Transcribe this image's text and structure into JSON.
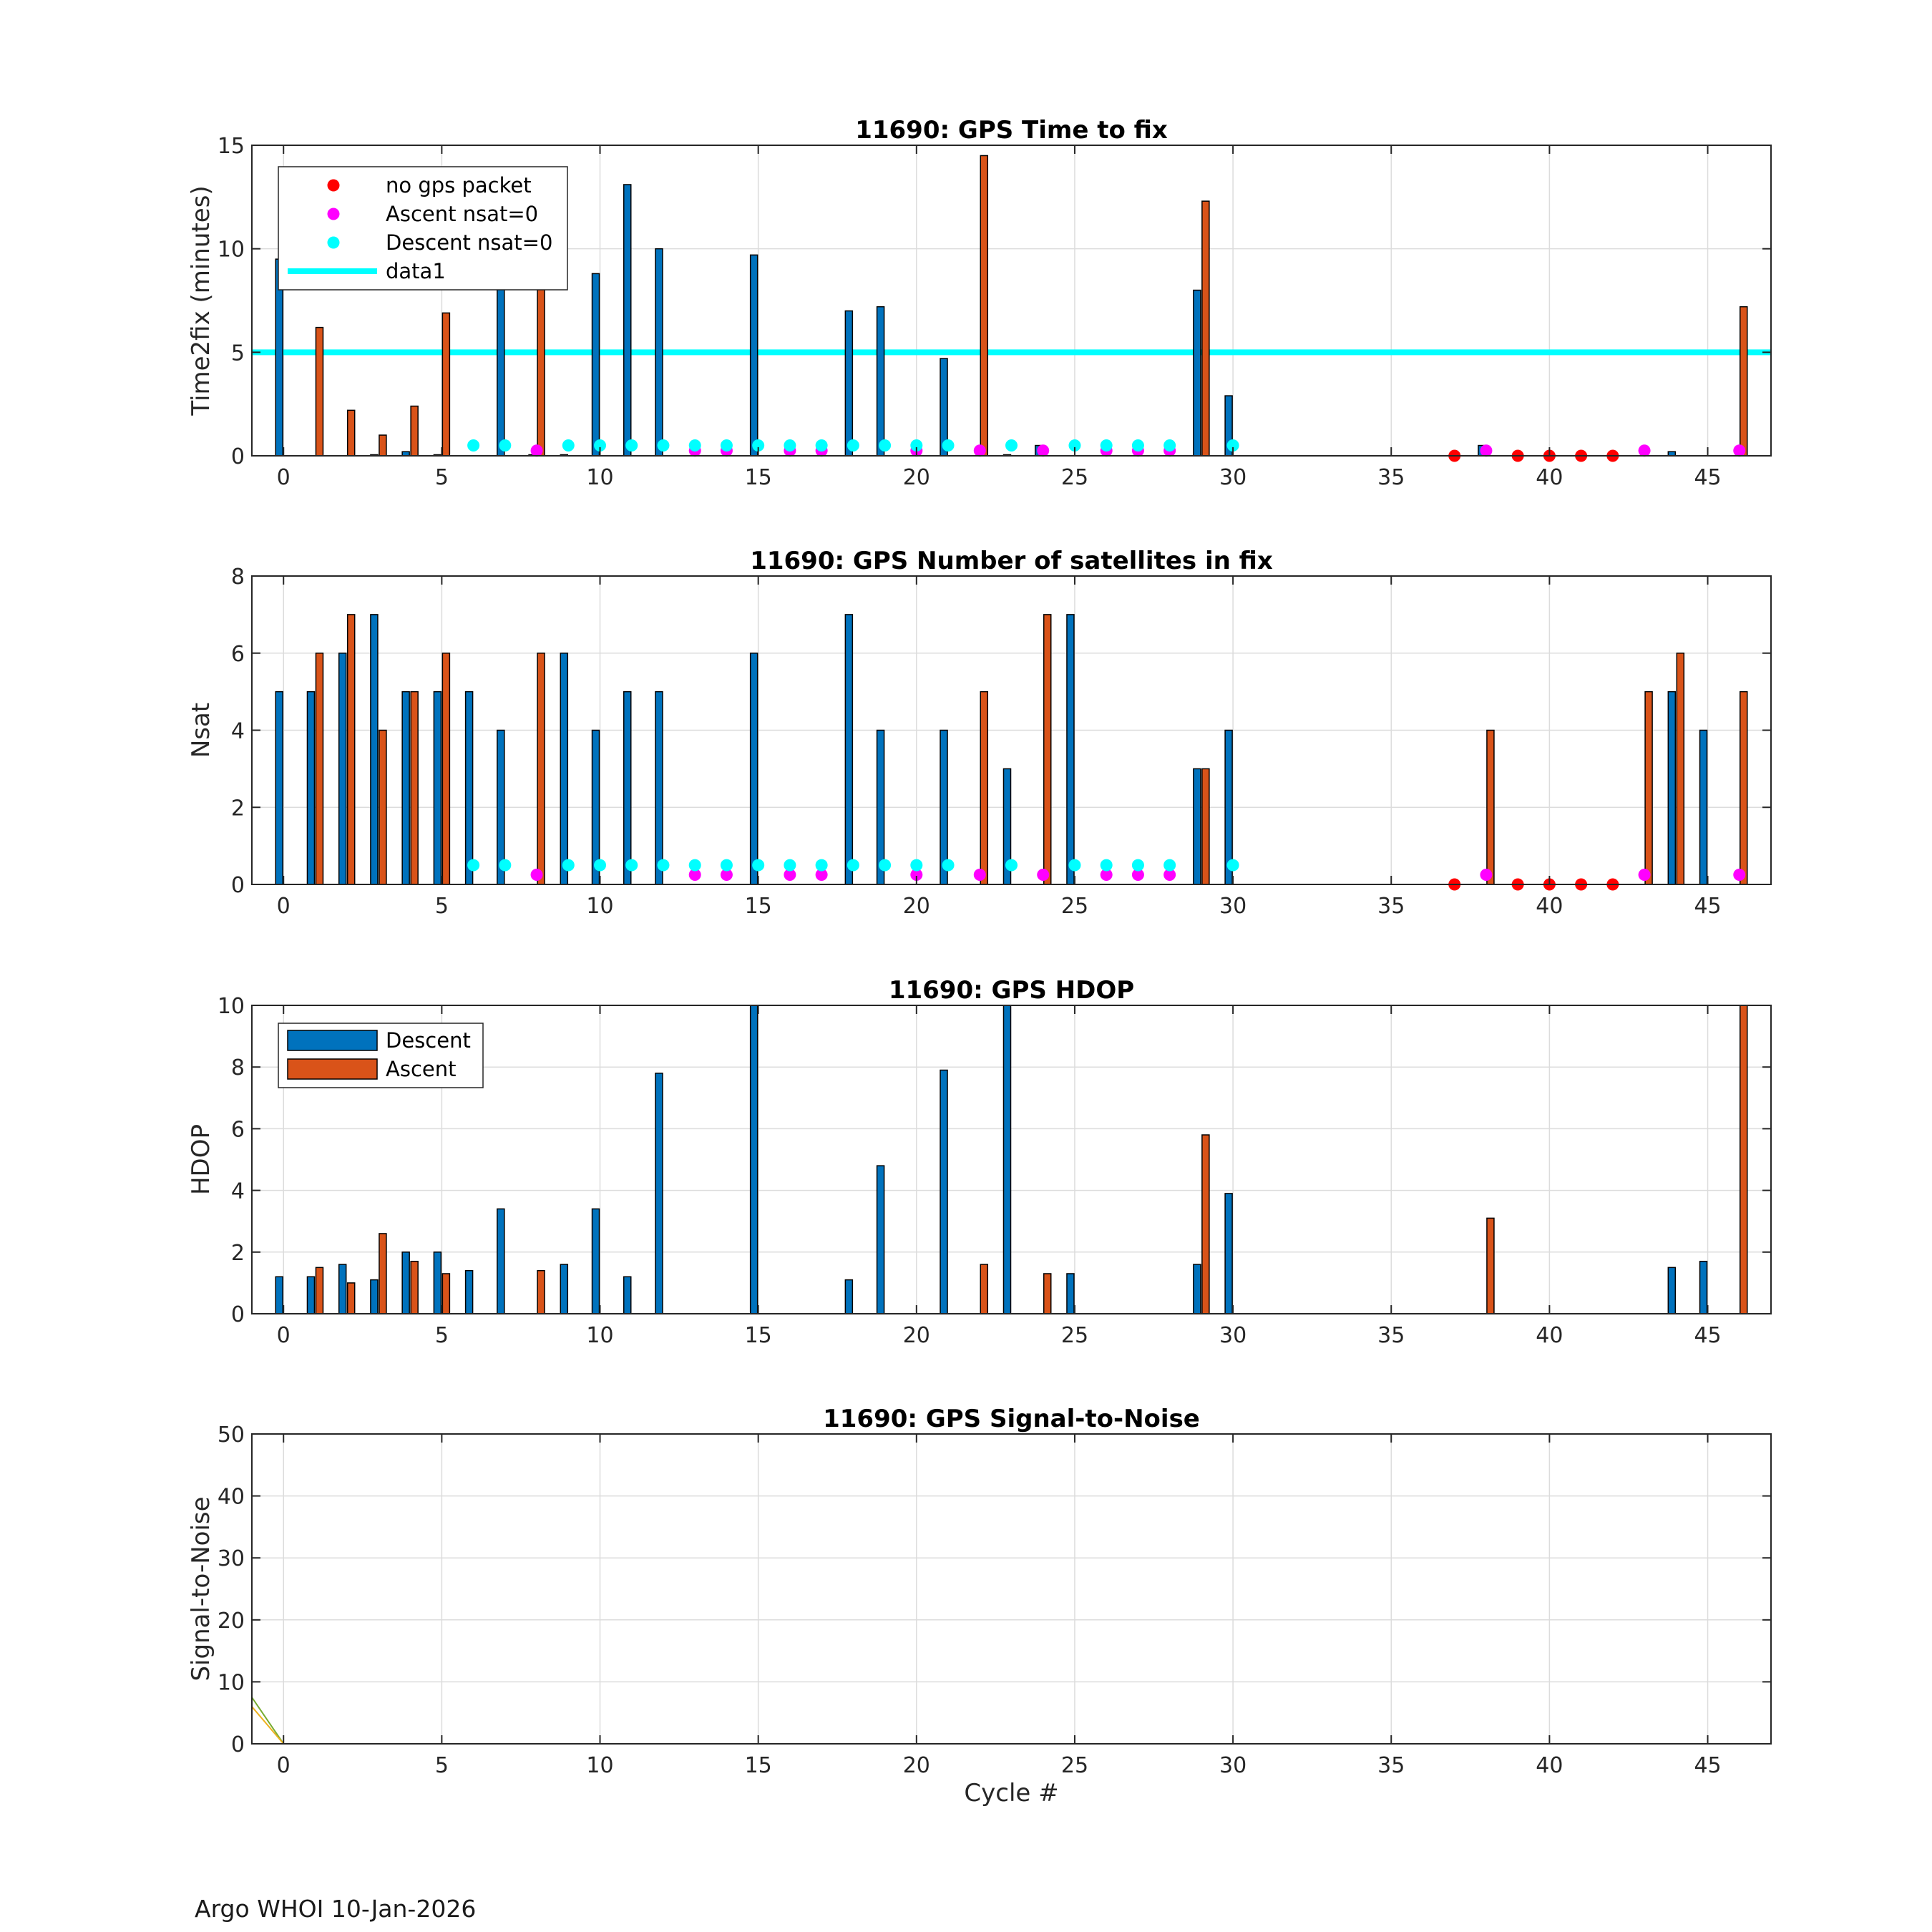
{
  "footer": "Argo WHOI 10-Jan-2026",
  "xlabel": "Cycle #",
  "xticks": [
    "0",
    "5",
    "10",
    "15",
    "20",
    "25",
    "30",
    "35",
    "40",
    "45"
  ],
  "colors": {
    "descent": "#0072bd",
    "ascent": "#d95319",
    "no_gps": "#ff0000",
    "ascent_nsat0": "#ff00ff",
    "descent_nsat0": "#00ffff",
    "data1": "#00ffff",
    "snr_green": "#77ac30",
    "snr_yellow": "#edb120"
  },
  "chart_data": [
    {
      "type": "bar",
      "title": "11690: GPS Time to fix",
      "ylabel": "Time2fix (minutes)",
      "ylim": [
        0,
        15
      ],
      "yticks": [
        "0",
        "5",
        "10",
        "15"
      ],
      "xlim": [
        -1,
        47
      ],
      "series": [
        {
          "name": "Descent",
          "x": [
            0,
            3,
            4,
            5,
            7,
            8,
            9,
            10,
            11,
            12,
            15,
            18,
            19,
            21,
            23,
            24,
            29,
            30,
            38,
            44
          ],
          "values": [
            9.5,
            0,
            0.2,
            0,
            8.2,
            0,
            0,
            8.8,
            13.1,
            10,
            9.7,
            7,
            7.2,
            4.7,
            0,
            0.5,
            8,
            2.9,
            0.5,
            0.2
          ]
        },
        {
          "name": "Ascent",
          "x": [
            1,
            2,
            3,
            4,
            5,
            8,
            22,
            29,
            46
          ],
          "values": [
            6.2,
            2.2,
            1,
            2.4,
            6.9,
            8.1,
            14.5,
            12.3,
            7.2
          ]
        }
      ],
      "markers": [
        {
          "name": "no gps packet",
          "x": [
            37,
            39,
            40,
            41,
            42
          ],
          "values": [
            0,
            0,
            0,
            0,
            0
          ]
        },
        {
          "name": "Ascent nsat=0",
          "x": [
            8,
            13,
            14,
            16,
            17,
            20,
            22,
            24,
            26,
            27,
            28,
            38,
            43,
            46
          ],
          "values": [
            0.25,
            0.25,
            0.25,
            0.25,
            0.25,
            0.25,
            0.25,
            0.25,
            0.25,
            0.25,
            0.25,
            0.25,
            0.25,
            0.25
          ]
        },
        {
          "name": "Descent nsat=0",
          "x": [
            6,
            7,
            9,
            10,
            11,
            12,
            13,
            14,
            15,
            16,
            17,
            18,
            19,
            20,
            21,
            23,
            25,
            26,
            27,
            28,
            30
          ],
          "values": [
            0.5,
            0.5,
            0.5,
            0.5,
            0.5,
            0.5,
            0.5,
            0.5,
            0.5,
            0.5,
            0.5,
            0.5,
            0.5,
            0.5,
            0.5,
            0.5,
            0.5,
            0.5,
            0.5,
            0.5,
            0.5
          ]
        }
      ],
      "lines": [
        {
          "name": "data1",
          "y": 5
        }
      ],
      "legend": [
        "no gps packet",
        "Ascent nsat=0",
        "Descent nsat=0",
        "data1"
      ],
      "legend_position": "top-left"
    },
    {
      "type": "bar",
      "title": "11690: GPS Number of satellites in fix",
      "ylabel": "Nsat",
      "ylim": [
        0,
        8
      ],
      "yticks": [
        "0",
        "2",
        "4",
        "6",
        "8"
      ],
      "xlim": [
        -1,
        47
      ],
      "series": [
        {
          "name": "Descent",
          "x": [
            0,
            1,
            2,
            3,
            4,
            5,
            6,
            7,
            9,
            10,
            11,
            12,
            15,
            18,
            19,
            21,
            23,
            25,
            29,
            30,
            44,
            45
          ],
          "values": [
            5,
            5,
            6,
            7,
            5,
            5,
            5,
            4,
            6,
            4,
            5,
            5,
            6,
            7,
            4,
            4,
            3,
            7,
            3,
            4,
            5,
            4
          ]
        },
        {
          "name": "Ascent",
          "x": [
            1,
            2,
            3,
            4,
            5,
            8,
            22,
            24,
            29,
            38,
            43,
            44,
            46
          ],
          "values": [
            6,
            7,
            4,
            5,
            6,
            6,
            5,
            7,
            3,
            4,
            5,
            6,
            5
          ]
        }
      ],
      "markers": [
        {
          "name": "no gps packet",
          "x": [
            37,
            39,
            40,
            41,
            42
          ],
          "values": [
            0,
            0,
            0,
            0,
            0
          ]
        },
        {
          "name": "Ascent nsat=0",
          "x": [
            8,
            13,
            14,
            16,
            17,
            20,
            22,
            24,
            26,
            27,
            28,
            38,
            43,
            46
          ],
          "values": [
            0.25,
            0.25,
            0.25,
            0.25,
            0.25,
            0.25,
            0.25,
            0.25,
            0.25,
            0.25,
            0.25,
            0.25,
            0.25,
            0.25
          ]
        },
        {
          "name": "Descent nsat=0",
          "x": [
            6,
            7,
            9,
            10,
            11,
            12,
            13,
            14,
            15,
            16,
            17,
            18,
            19,
            20,
            21,
            23,
            25,
            26,
            27,
            28,
            30
          ],
          "values": [
            0.5,
            0.5,
            0.5,
            0.5,
            0.5,
            0.5,
            0.5,
            0.5,
            0.5,
            0.5,
            0.5,
            0.5,
            0.5,
            0.5,
            0.5,
            0.5,
            0.5,
            0.5,
            0.5,
            0.5,
            0.5
          ]
        }
      ]
    },
    {
      "type": "bar",
      "title": "11690: GPS HDOP",
      "ylabel": "HDOP",
      "ylim": [
        0,
        10
      ],
      "yticks": [
        "0",
        "2",
        "4",
        "6",
        "8",
        "10"
      ],
      "xlim": [
        -1,
        47
      ],
      "series": [
        {
          "name": "Descent",
          "x": [
            0,
            1,
            2,
            3,
            4,
            5,
            6,
            7,
            9,
            10,
            11,
            12,
            15,
            18,
            19,
            21,
            23,
            25,
            29,
            30,
            44,
            45
          ],
          "values": [
            1.2,
            1.2,
            1.6,
            1.1,
            2,
            2,
            1.4,
            3.4,
            1.6,
            3.4,
            1.2,
            7.8,
            10,
            1.1,
            4.8,
            7.9,
            10,
            1.3,
            1.6,
            3.9,
            1.5,
            1.7
          ]
        },
        {
          "name": "Ascent",
          "x": [
            1,
            2,
            3,
            4,
            5,
            8,
            22,
            24,
            29,
            38,
            46
          ],
          "values": [
            1.5,
            1,
            2.6,
            1.7,
            1.3,
            1.4,
            1.6,
            1.3,
            5.8,
            3.1,
            10
          ]
        }
      ],
      "legend": [
        "Descent",
        "Ascent"
      ],
      "legend_position": "top-left"
    },
    {
      "type": "line",
      "title": "11690: GPS Signal-to-Noise",
      "ylabel": "Signal-to-Noise",
      "ylim": [
        0,
        50
      ],
      "yticks": [
        "0",
        "10",
        "20",
        "30",
        "40",
        "50"
      ],
      "xlim": [
        -1,
        47
      ],
      "series": [
        {
          "name": "snr-green",
          "x": [
            -1,
            0,
            46
          ],
          "values": [
            7.5,
            0,
            0
          ]
        },
        {
          "name": "snr-yellow",
          "x": [
            -1,
            0,
            46
          ],
          "values": [
            6,
            0,
            0
          ]
        }
      ]
    }
  ]
}
